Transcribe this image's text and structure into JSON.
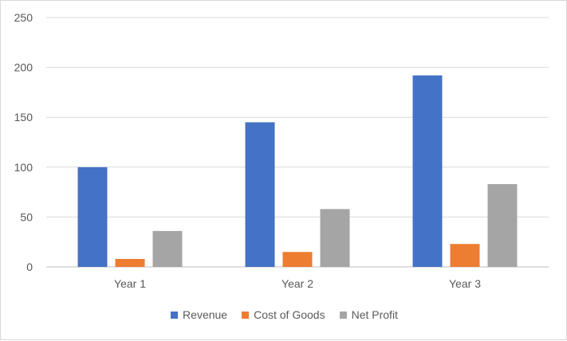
{
  "chart_data": {
    "type": "bar",
    "title": "",
    "xlabel": "",
    "ylabel": "",
    "categories": [
      "Year 1",
      "Year 2",
      "Year 3"
    ],
    "series": [
      {
        "name": "Revenue",
        "color": "#4472C4",
        "values": [
          100,
          145,
          192
        ]
      },
      {
        "name": "Cost of Goods",
        "color": "#ED7D31",
        "values": [
          8,
          15,
          23
        ]
      },
      {
        "name": "Net Profit",
        "color": "#A5A5A5",
        "values": [
          36,
          58,
          83
        ]
      }
    ],
    "ylim": [
      0,
      250
    ],
    "yticks": [
      0,
      50,
      100,
      150,
      200,
      250
    ],
    "grid": true,
    "legend_position": "bottom"
  }
}
